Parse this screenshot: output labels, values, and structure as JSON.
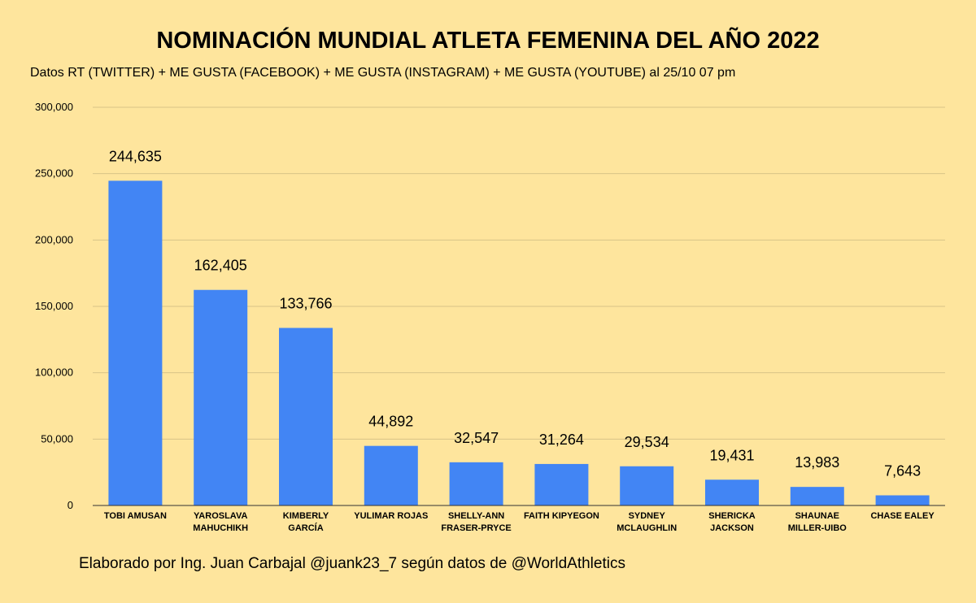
{
  "chart_data": {
    "type": "bar",
    "title": "NOMINACIÓN MUNDIAL ATLETA FEMENINA DEL AÑO 2022",
    "subtitle": "Datos RT (TWITTER) + ME GUSTA (FACEBOOK) + ME GUSTA (INSTAGRAM) + ME GUSTA (YOUTUBE)  al 25/10 07 pm",
    "footer": "Elaborado por Ing. Juan Carbajal @juank23_7 según datos de @WorldAthletics",
    "xlabel": "",
    "ylabel": "",
    "ylim": [
      0,
      300000
    ],
    "y_ticks": [
      0,
      50000,
      100000,
      150000,
      200000,
      250000,
      300000
    ],
    "y_tick_labels": [
      "0",
      "50,000",
      "100,000",
      "150,000",
      "200,000",
      "250,000",
      "300,000"
    ],
    "grid": true,
    "bar_color": "#4285f4",
    "categories": [
      [
        "TOBI AMUSAN"
      ],
      [
        "YAROSLAVA",
        "MAHUCHIKH"
      ],
      [
        "KIMBERLY",
        "GARCÍA"
      ],
      [
        "YULIMAR ROJAS"
      ],
      [
        "SHELLY-ANN",
        "FRASER-PRYCE"
      ],
      [
        "FAITH KIPYEGON"
      ],
      [
        "SYDNEY",
        "MCLAUGHLIN"
      ],
      [
        "SHERICKA",
        "JACKSON"
      ],
      [
        "SHAUNAE",
        "MILLER-UIBO"
      ],
      [
        "CHASE EALEY"
      ]
    ],
    "values": [
      244635,
      162405,
      133766,
      44892,
      32547,
      31264,
      29534,
      19431,
      13983,
      7643
    ],
    "value_labels": [
      "244,635",
      "162,405",
      "133,766",
      "44,892",
      "32,547",
      "31,264",
      "29,534",
      "19,431",
      "13,983",
      "7,643"
    ]
  }
}
